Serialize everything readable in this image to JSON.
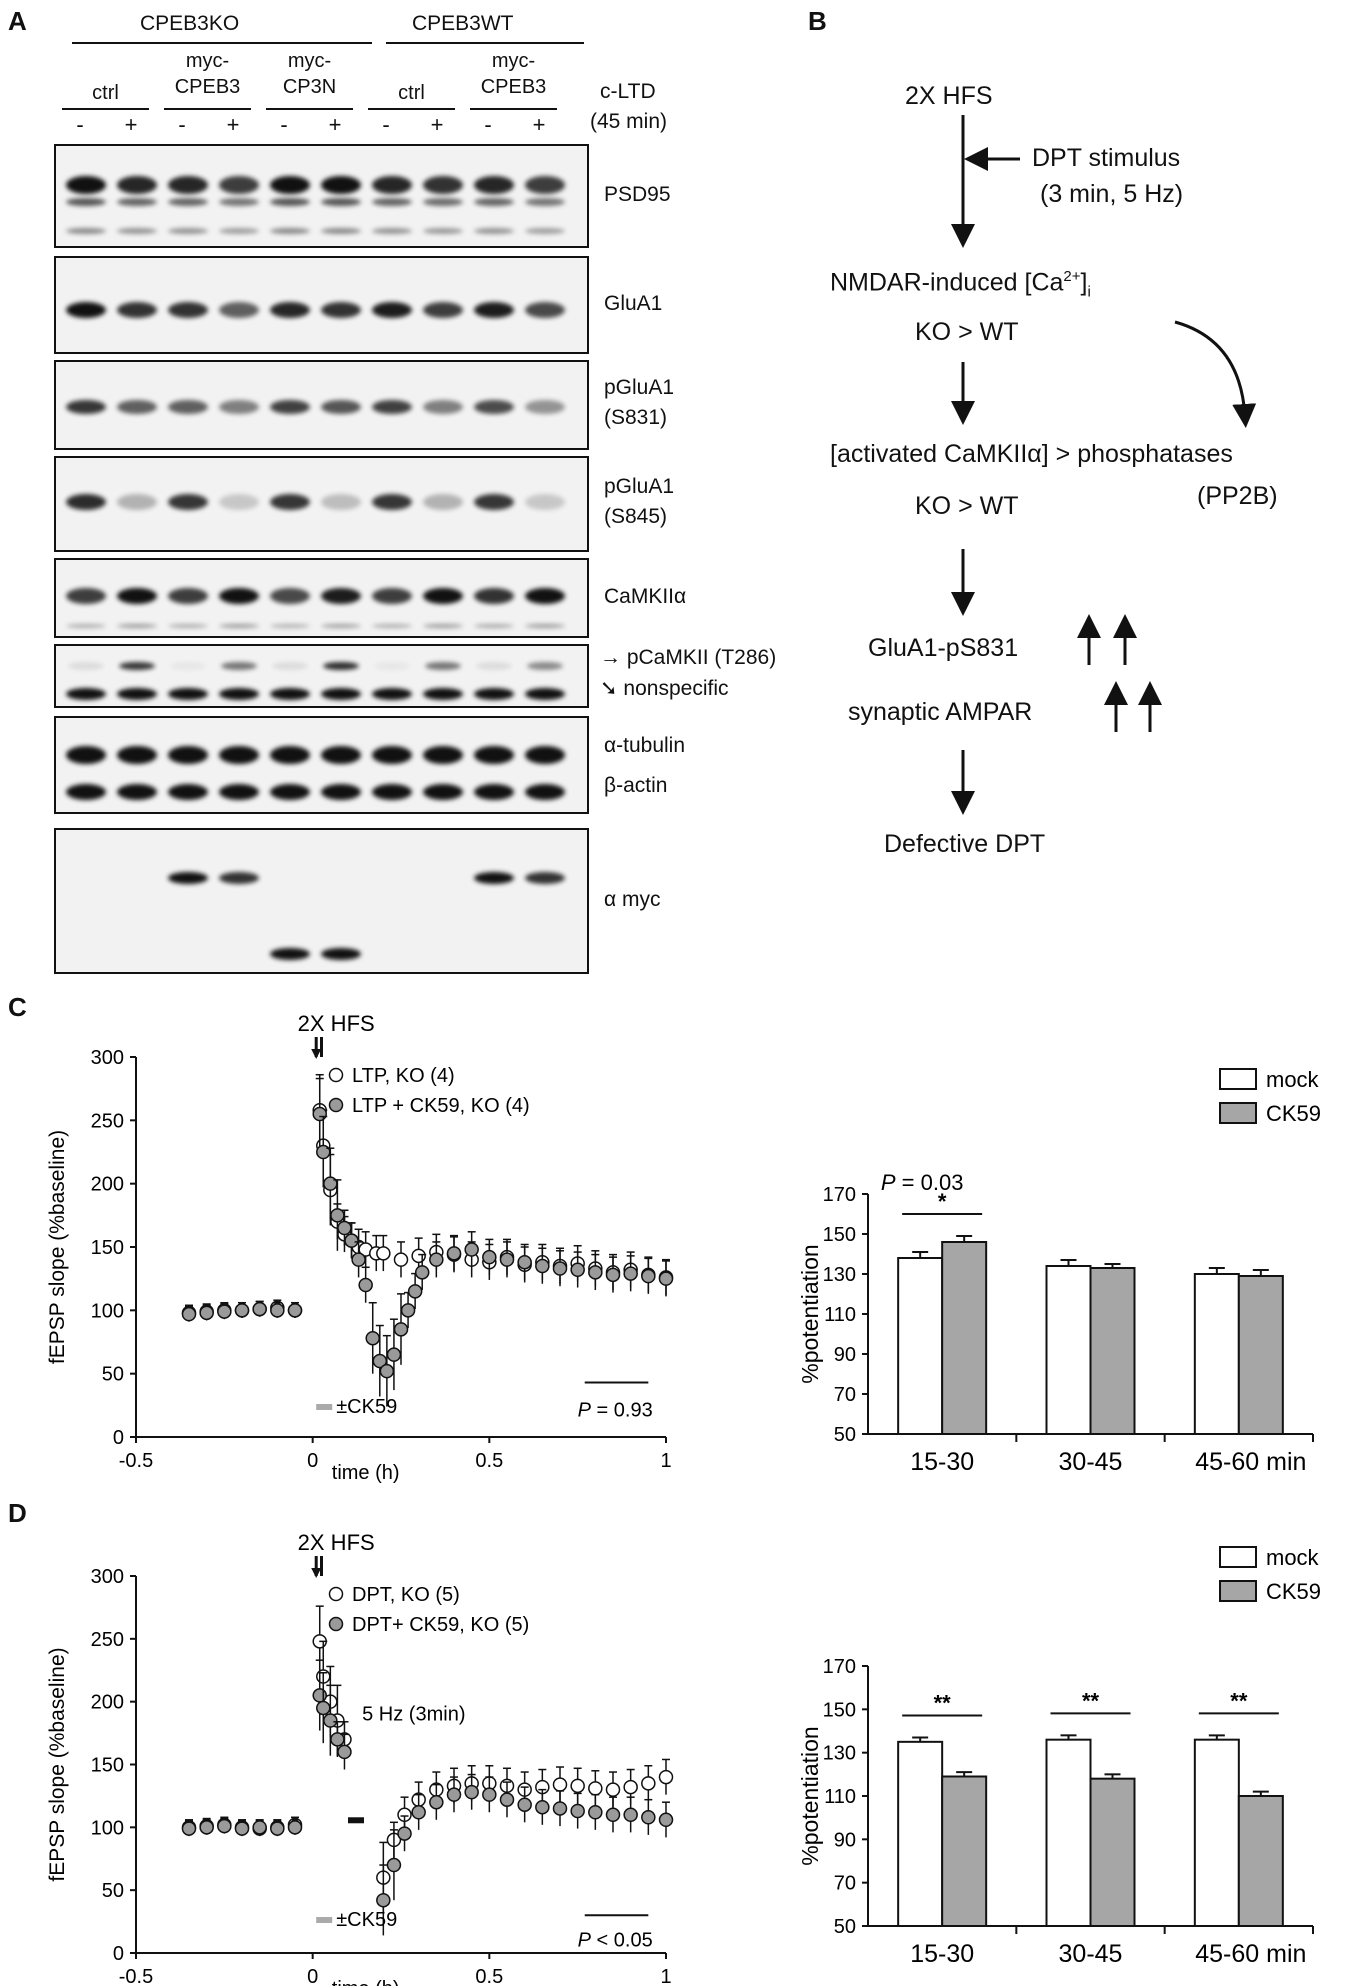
{
  "panelA": {
    "letter": "A",
    "group1": "CPEB3KO",
    "group2": "CPEB3WT",
    "conditions": [
      "ctrl",
      "myc-\nCPEB3",
      "myc-\nCP3N",
      "ctrl",
      "myc-\nCPEB3"
    ],
    "treatment_label_1": "c-LTD",
    "treatment_label_2": "(45 min)",
    "signs": [
      "-",
      "+",
      "-",
      "+",
      "-",
      "+",
      "-",
      "+",
      "-",
      "+"
    ],
    "blots": [
      {
        "label": "PSD95"
      },
      {
        "label": "GluA1"
      },
      {
        "label": "pGluA1\n(S831)"
      },
      {
        "label": "pGluA1\n(S845)"
      },
      {
        "label": "CaMKIIα"
      },
      {
        "label": "pCaMKII (T286)",
        "label2": "nonspecific"
      },
      {
        "label": "α-tubulin",
        "label2": "β-actin"
      },
      {
        "label": "α myc"
      }
    ]
  },
  "panelB": {
    "letter": "B",
    "step1": "2X HFS",
    "side_stimulus": "DPT stimulus",
    "side_stimulus_2": "(3 min, 5 Hz)",
    "step2": "NMDAR-induced [Ca",
    "step2_sup": "2+",
    "step2_close": "]",
    "step2_sub": "i",
    "step2b": "KO > WT",
    "step3": "[activated CaMKIIα] > phosphatases",
    "step3_side": "(PP2B)",
    "step3b": "KO > WT",
    "step4": "GluA1-pS831",
    "step5": "synaptic AMPAR",
    "step6": "Defective DPT"
  },
  "panelC": {
    "letter": "C",
    "stim": "2X HFS",
    "ylabel": "fEPSP slope (%baseline)",
    "xlabel": "time (h)",
    "legend": [
      "LTP, KO (4)",
      "LTP + CK59, KO (4)"
    ],
    "pvalue_prefix": "P",
    "pvalue_rest": " = 0.93",
    "drug_label": "±CK59",
    "bar_ylabel": "%potentiation",
    "bar_legend": [
      "mock",
      "CK59"
    ],
    "bar_p_prefix": "P",
    "bar_p_rest": " = 0.03",
    "bar_sig": [
      "*",
      "",
      ""
    ],
    "bar_cats": [
      "15-30",
      "30-45",
      "45-60 min"
    ]
  },
  "panelD": {
    "letter": "D",
    "stim": "2X HFS",
    "ylabel": "fEPSP slope (%baseline)",
    "xlabel": "time (h)",
    "legend": [
      "DPT, KO (5)",
      "DPT+ CK59, KO (5)"
    ],
    "hz_label": "5 Hz (3min)",
    "pvalue_prefix": "P",
    "pvalue_rest": " < 0.05",
    "drug_label": "±CK59",
    "bar_ylabel": "%potentiation",
    "bar_legend": [
      "mock",
      "CK59"
    ],
    "bar_sig": [
      "**",
      "**",
      "**"
    ],
    "bar_cats": [
      "15-30",
      "30-45",
      "45-60 min"
    ]
  },
  "chart_data": [
    {
      "type": "scatter",
      "xlabel": "time (h)",
      "ylabel": "fEPSP slope (%baseline)",
      "xlim": [
        -0.5,
        1
      ],
      "ylim": [
        0,
        300
      ],
      "xticks": [
        "-0.5",
        "0",
        "0.5",
        "1"
      ],
      "yticks": [
        "0",
        "50",
        "100",
        "150",
        "200",
        "250",
        "300"
      ],
      "series": [
        {
          "name": "LTP, KO (4)",
          "color": "#ffffff",
          "x": [
            -0.35,
            -0.3,
            -0.25,
            -0.2,
            -0.15,
            -0.1,
            -0.05,
            0.02,
            0.03,
            0.05,
            0.07,
            0.09,
            0.11,
            0.13,
            0.15,
            0.18,
            0.2,
            0.25,
            0.3,
            0.35,
            0.4,
            0.45,
            0.5,
            0.55,
            0.6,
            0.65,
            0.7,
            0.75,
            0.8,
            0.85,
            0.9,
            0.95,
            1.0
          ],
          "y": [
            98,
            99,
            100,
            100,
            101,
            102,
            100,
            258,
            230,
            195,
            170,
            160,
            155,
            150,
            148,
            145,
            145,
            140,
            143,
            146,
            144,
            140,
            138,
            142,
            136,
            138,
            135,
            137,
            133,
            130,
            132,
            128,
            126
          ]
        },
        {
          "name": "LTP + CK59, KO (4)",
          "color": "#9a9a9a",
          "x": [
            -0.35,
            -0.3,
            -0.25,
            -0.2,
            -0.15,
            -0.1,
            -0.05,
            0.02,
            0.03,
            0.05,
            0.07,
            0.09,
            0.11,
            0.13,
            0.15,
            0.17,
            0.19,
            0.21,
            0.23,
            0.25,
            0.27,
            0.29,
            0.31,
            0.35,
            0.4,
            0.45,
            0.5,
            0.55,
            0.6,
            0.65,
            0.7,
            0.75,
            0.8,
            0.85,
            0.9,
            0.95,
            1.0
          ],
          "y": [
            97,
            98,
            99,
            100,
            101,
            100,
            100,
            255,
            225,
            200,
            175,
            165,
            155,
            140,
            120,
            78,
            60,
            52,
            65,
            85,
            100,
            115,
            130,
            140,
            145,
            148,
            142,
            140,
            138,
            135,
            133,
            132,
            130,
            128,
            129,
            127,
            125
          ]
        }
      ],
      "annotations": [
        "2X HFS",
        "P = 0.93",
        "±CK59"
      ]
    },
    {
      "type": "bar",
      "ylabel": "%potentiation",
      "ylim": [
        50,
        170
      ],
      "yticks": [
        "50",
        "70",
        "90",
        "110",
        "130",
        "150",
        "170"
      ],
      "categories": [
        "15-30",
        "30-45",
        "45-60 min"
      ],
      "series": [
        {
          "name": "mock",
          "color": "#ffffff",
          "values": [
            138,
            134,
            130
          ],
          "errors": [
            3,
            3,
            3
          ]
        },
        {
          "name": "CK59",
          "color": "#a6a6a6",
          "values": [
            146,
            133,
            129
          ],
          "errors": [
            3,
            2,
            3
          ]
        }
      ],
      "annotations": [
        "P = 0.03",
        "*"
      ]
    },
    {
      "type": "scatter",
      "xlabel": "time (h)",
      "ylabel": "fEPSP slope (%baseline)",
      "xlim": [
        -0.5,
        1
      ],
      "ylim": [
        0,
        300
      ],
      "xticks": [
        "-0.5",
        "0",
        "0.5",
        "1"
      ],
      "yticks": [
        "0",
        "50",
        "100",
        "150",
        "200",
        "250",
        "300"
      ],
      "series": [
        {
          "name": "DPT, KO (5)",
          "color": "#ffffff",
          "x": [
            -0.35,
            -0.3,
            -0.25,
            -0.2,
            -0.15,
            -0.1,
            -0.05,
            0.02,
            0.03,
            0.05,
            0.07,
            0.09,
            0.2,
            0.23,
            0.26,
            0.3,
            0.35,
            0.4,
            0.45,
            0.5,
            0.55,
            0.6,
            0.65,
            0.7,
            0.75,
            0.8,
            0.85,
            0.9,
            0.95,
            1.0
          ],
          "y": [
            100,
            101,
            102,
            100,
            99,
            100,
            102,
            248,
            220,
            200,
            185,
            170,
            60,
            90,
            110,
            122,
            130,
            133,
            135,
            135,
            133,
            130,
            132,
            134,
            133,
            131,
            130,
            132,
            135,
            140
          ]
        },
        {
          "name": "DPT+ CK59, KO (5)",
          "color": "#9a9a9a",
          "x": [
            -0.35,
            -0.3,
            -0.25,
            -0.2,
            -0.15,
            -0.1,
            -0.05,
            0.02,
            0.03,
            0.05,
            0.07,
            0.09,
            0.2,
            0.23,
            0.26,
            0.3,
            0.35,
            0.4,
            0.45,
            0.5,
            0.55,
            0.6,
            0.65,
            0.7,
            0.75,
            0.8,
            0.85,
            0.9,
            0.95,
            1.0
          ],
          "y": [
            99,
            100,
            101,
            99,
            100,
            99,
            100,
            205,
            195,
            185,
            170,
            160,
            42,
            70,
            95,
            112,
            120,
            126,
            128,
            126,
            122,
            118,
            116,
            115,
            113,
            112,
            110,
            110,
            108,
            106
          ]
        }
      ],
      "annotations": [
        "2X HFS",
        "5 Hz (3min)",
        "P < 0.05",
        "±CK59"
      ]
    },
    {
      "type": "bar",
      "ylabel": "%potentiation",
      "ylim": [
        50,
        170
      ],
      "yticks": [
        "50",
        "70",
        "90",
        "110",
        "130",
        "150",
        "170"
      ],
      "categories": [
        "15-30",
        "30-45",
        "45-60 min"
      ],
      "series": [
        {
          "name": "mock",
          "color": "#ffffff",
          "values": [
            135,
            136,
            136
          ],
          "errors": [
            2,
            2,
            2
          ]
        },
        {
          "name": "CK59",
          "color": "#a6a6a6",
          "values": [
            119,
            118,
            110
          ],
          "errors": [
            2,
            2,
            2
          ]
        }
      ],
      "annotations": [
        "**",
        "**",
        "**"
      ]
    }
  ]
}
